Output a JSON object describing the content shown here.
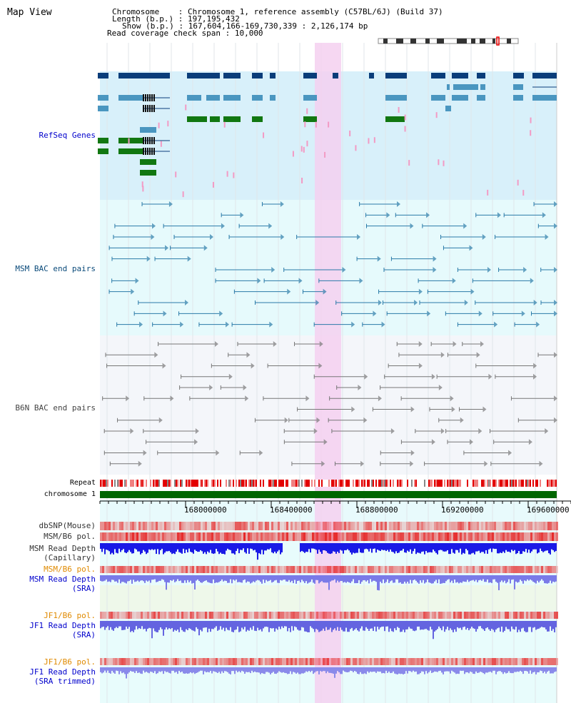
{
  "title": "Map View",
  "header": {
    "chromosome_label": "Chromosome    ",
    "chromosome_value": ": Chromosome 1, reference assembly (C57BL/6J) (Build 37)",
    "length_label": "Length (b.p.)",
    "length_value": ": 197,195,432",
    "show_label": "Show (b.p.)",
    "show_value": ": 167,604,166-169,730,339 : 2,126,174 bp",
    "coverage_label": "Read coverage check span",
    "coverage_value": ": 10,000"
  },
  "tracks": {
    "refseq": "RefSeq Genes",
    "msm_bac": "MSM BAC end pairs",
    "b6n_bac": "B6N BAC end pairs",
    "repeat": "Repeat",
    "chromosome": "chromosome 1",
    "dbsnp": "dbSNP(Mouse)",
    "msm_b6_pol_1": "MSM/B6 pol.",
    "msm_depth_cap_1": "MSM Read Depth",
    "msm_depth_cap_2": "(Capillary)",
    "msm_b6_pol_2": "MSM/B6 pol.",
    "msm_depth_sra_1": "MSM Read Depth",
    "msm_depth_sra_2": "(SRA)",
    "jf1_b6_pol_1": "JF1/B6 pol.",
    "jf1_depth_1": "JF1 Read Depth",
    "jf1_depth_2": "(SRA)",
    "jf1_b6_pol_2": "JF1/B6 pol.",
    "jf1_trim_1": "JF1 Read Depth",
    "jf1_trim_2": "(SRA trimmed)"
  },
  "axis": {
    "ticks": [
      "168000000",
      "168400000",
      "168800000",
      "169200000",
      "169600000"
    ]
  },
  "colors": {
    "refseq_bg": "#d8f0fa",
    "msm_bg": "#e6fafc",
    "b6n_bg": "#f4f6fa",
    "highlight": "#f5d0f0",
    "refseq_dark": "#0a3d7a",
    "refseq_light": "#4a96c0",
    "refseq_green": "#117711",
    "msm_pair": "#2a7aa8",
    "b6n_pair": "#777777",
    "label_blue": "#0000cc",
    "label_orange": "#e08a00",
    "chrom_green": "#006600"
  }
}
